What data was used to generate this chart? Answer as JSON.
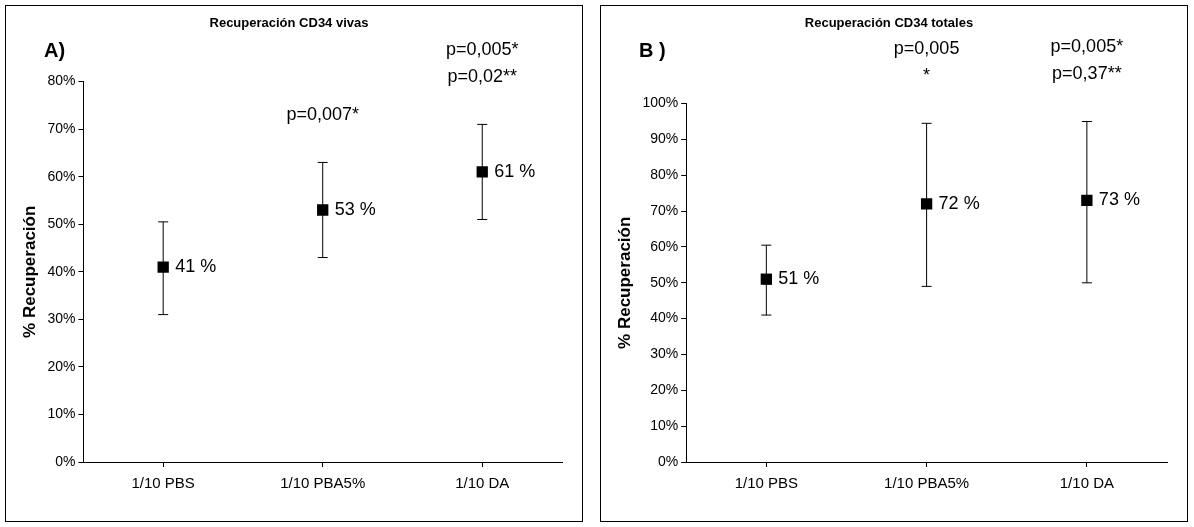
{
  "chart_data": [
    {
      "type": "scatter",
      "title": "Recuperación CD34 vivas",
      "ylabel": "% Recuperación",
      "categories": [
        "1/10 PBS",
        "1/10 PBA5%",
        "1/10 DA"
      ],
      "series": [
        {
          "color": "#000000",
          "values": [
            41,
            53,
            61
          ],
          "errors": [
            [
              31,
              50.5
            ],
            [
              43,
              63
            ],
            [
              51,
              71
            ]
          ],
          "value_labels": [
            "41 %",
            "53 %",
            "61 %"
          ]
        }
      ],
      "ylim": [
        0,
        80
      ],
      "yticks": [
        {
          "value": 0,
          "label": "0%"
        },
        {
          "value": 10,
          "label": "10%"
        },
        {
          "value": 20,
          "label": "20%"
        },
        {
          "value": 30,
          "label": "30%"
        },
        {
          "value": 40,
          "label": "40%"
        },
        {
          "value": 50,
          "label": "50%"
        },
        {
          "value": 60,
          "label": "60%"
        },
        {
          "value": 70,
          "label": "70%"
        },
        {
          "value": 80,
          "label": "80%"
        }
      ],
      "marker": "square",
      "grid": false,
      "legend": false,
      "annotations": [
        "A)",
        "p=0,007*",
        "p=0,005*",
        "p=0,02**"
      ]
    },
    {
      "type": "scatter",
      "title": "Recuperación CD34 totales",
      "ylabel": "% Recuperación",
      "categories": [
        "1/10 PBS",
        "1/10 PBA5%",
        "1/10 DA"
      ],
      "series": [
        {
          "color": "#000000",
          "values": [
            51,
            72,
            73
          ],
          "errors": [
            [
              41,
              60.5
            ],
            [
              49,
              94.5
            ],
            [
              50,
              95
            ]
          ],
          "value_labels": [
            "51 %",
            "72 %",
            "73 %"
          ]
        }
      ],
      "ylim": [
        0,
        100
      ],
      "yticks": [
        {
          "value": 0,
          "label": "0%"
        },
        {
          "value": 10,
          "label": "10%"
        },
        {
          "value": 20,
          "label": "20%"
        },
        {
          "value": 30,
          "label": "30%"
        },
        {
          "value": 40,
          "label": "40%"
        },
        {
          "value": 50,
          "label": "50%"
        },
        {
          "value": 60,
          "label": "60%"
        },
        {
          "value": 70,
          "label": "70%"
        },
        {
          "value": 80,
          "label": "80%"
        },
        {
          "value": 90,
          "label": "90%"
        },
        {
          "value": 100,
          "label": "100%"
        }
      ],
      "marker": "square",
      "grid": false,
      "legend": false,
      "annotations": [
        "B )",
        "p=0,005",
        "*",
        "p=0,005*",
        "p=0,37**"
      ]
    }
  ]
}
